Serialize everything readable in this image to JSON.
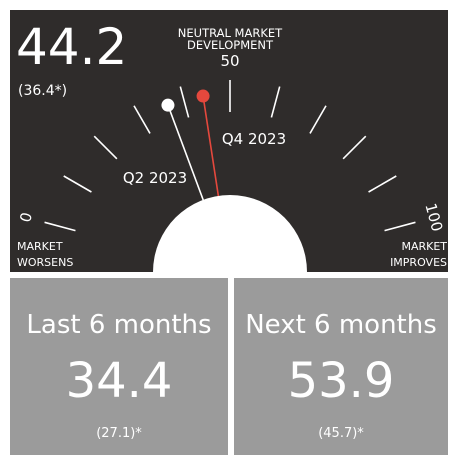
{
  "chart_data": {
    "type": "gauge",
    "neutral_label": [
      "NEUTRAL MARKET",
      "DEVELOPMENT"
    ],
    "left_label": [
      "MARKET",
      "WORSENS"
    ],
    "right_label": [
      "MARKET",
      "IMPROVES"
    ],
    "xlim": [
      0,
      100
    ],
    "xticks": [
      0,
      10,
      20,
      30,
      40,
      50,
      60,
      70,
      80,
      90,
      100
    ],
    "major_ticks": [
      0,
      50,
      100
    ],
    "needles": [
      {
        "name": "Q2 2023",
        "value": 36.4,
        "value_label": "(36.4*)",
        "color": "#ffffff"
      },
      {
        "name": "Q4 2023",
        "value": 44.2,
        "color": "#e5483d"
      }
    ],
    "panels": [
      {
        "title": "Last 6 months",
        "value": 34.4,
        "note": "(27.1)*"
      },
      {
        "title": "Next 6 months",
        "value": 53.9,
        "note": "(45.7)*"
      }
    ]
  }
}
